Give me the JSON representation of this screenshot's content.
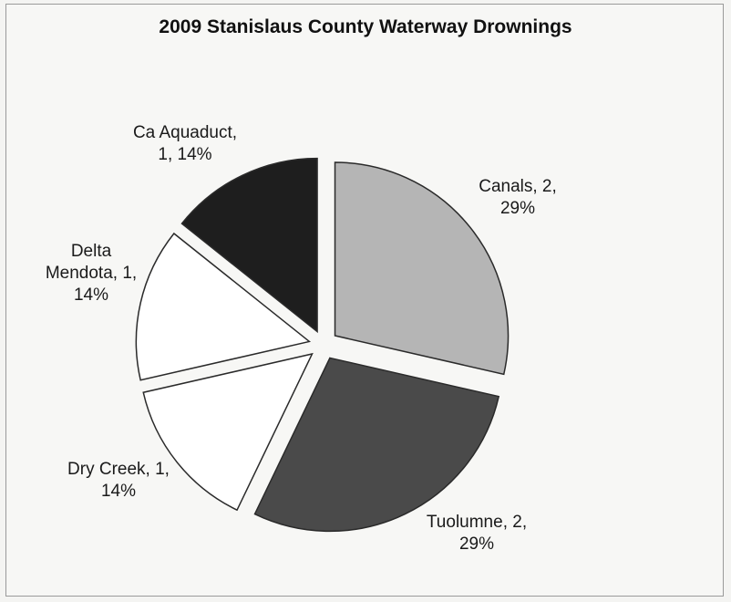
{
  "chart_data": {
    "type": "pie",
    "title": "2009 Stanislaus County Waterway Drownings",
    "slices": [
      {
        "label": "Canals",
        "value": 2,
        "percent": "29%",
        "label_lines": [
          "Canals, 2,",
          "29%"
        ],
        "color": "#b5b5b5"
      },
      {
        "label": "Tuolumne",
        "value": 2,
        "percent": "29%",
        "label_lines": [
          "Tuolumne, 2,",
          "29%"
        ],
        "color": "#4a4a4a"
      },
      {
        "label": "Dry Creek",
        "value": 1,
        "percent": "14%",
        "label_lines": [
          "Dry Creek, 1,",
          "14%"
        ],
        "color": "#ffffff"
      },
      {
        "label": "Delta Mendota",
        "value": 1,
        "percent": "14%",
        "label_lines": [
          "Delta",
          "Mendota, 1,",
          "14%"
        ],
        "color": "#ffffff"
      },
      {
        "label": "Ca Aquaduct",
        "value": 1,
        "percent": "14%",
        "label_lines": [
          "Ca Aquaduct,",
          "1, 14%"
        ],
        "color": "#1e1e1e"
      }
    ],
    "legend": "none",
    "exploded": true
  }
}
